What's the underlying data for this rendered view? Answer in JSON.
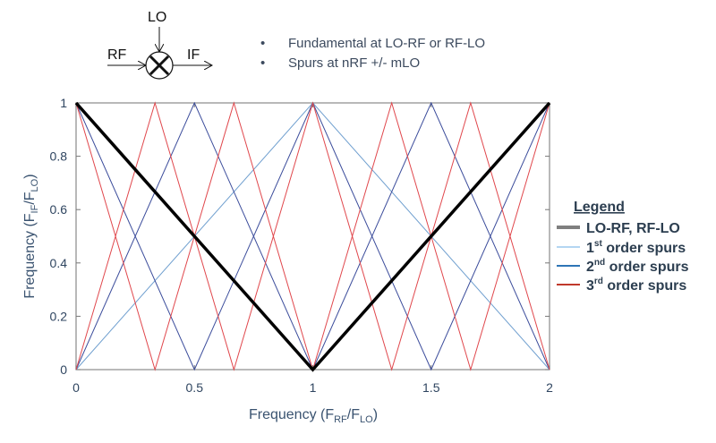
{
  "diagram": {
    "lo_label": "LO",
    "rf_label": "RF",
    "if_label": "IF"
  },
  "bullets": [
    "Fundamental at LO-RF or RF-LO",
    "Spurs at nRF +/- mLO"
  ],
  "legend": {
    "title": "Legend",
    "items": [
      {
        "main": "LO-RF,  RF-LO",
        "sup": "",
        "rest": "",
        "color": "#7f7f7f"
      },
      {
        "main": "1",
        "sup": "st",
        "rest": " order spurs",
        "color": "#b4d6f2"
      },
      {
        "main": "2",
        "sup": "nd",
        "rest": " order spurs",
        "color": "#2e75b6"
      },
      {
        "main": "3",
        "sup": "rd",
        "rest": " order spurs",
        "color": "#c0392b"
      }
    ]
  },
  "chart_data": {
    "type": "line",
    "xlabel": {
      "main": "Frequency (F",
      "sub1": "RF",
      "mid": "/F",
      "sub2": "LO",
      "end": ")"
    },
    "ylabel": {
      "main": "Frequency (F",
      "sub1": "IF",
      "mid": "/F",
      "sub2": "LO",
      "end": ")"
    },
    "xlim": [
      0,
      2
    ],
    "ylim": [
      0,
      1
    ],
    "xticks": [
      "0",
      "0.5",
      "1",
      "1.5",
      "2"
    ],
    "xtick_values": [
      0,
      0.5,
      1,
      1.5,
      2
    ],
    "yticks": [
      "0",
      "0.2",
      "0.4",
      "0.6",
      "0.8",
      "1"
    ],
    "ytick_values": [
      0,
      0.2,
      0.4,
      0.6,
      0.8,
      1
    ],
    "grid": false,
    "legend_position": "right",
    "series": [
      {
        "name": "1st order spurs",
        "color": "#6f9fcf",
        "x": [
          0,
          1,
          2
        ],
        "y": [
          0,
          1,
          0
        ]
      },
      {
        "name": "2nd order spurs",
        "color": "#3b4c9b",
        "x": [
          0,
          0.5,
          1,
          1.5,
          2
        ],
        "y": [
          0,
          1,
          0,
          1,
          0
        ]
      },
      {
        "name": "2nd order spurs",
        "color": "#3b4c9b",
        "x": [
          0,
          0.5,
          1,
          1.5,
          2
        ],
        "y": [
          1,
          0,
          1,
          0,
          1
        ]
      },
      {
        "name": "3rd order spurs",
        "color": "#e0474c",
        "x": [
          0,
          0.3333,
          0.6667,
          1,
          1.3333,
          1.6667,
          2
        ],
        "y": [
          0,
          1,
          0,
          1,
          0,
          1,
          0
        ]
      },
      {
        "name": "3rd order spurs",
        "color": "#e0474c",
        "x": [
          0,
          0.3333,
          0.6667,
          1,
          1.3333,
          1.6667,
          2
        ],
        "y": [
          1,
          0,
          1,
          0,
          1,
          0,
          1
        ]
      },
      {
        "name": "LO-RF, RF-LO",
        "color": "#000000",
        "x": [
          0,
          1,
          2
        ],
        "y": [
          1,
          0,
          1
        ]
      }
    ]
  }
}
